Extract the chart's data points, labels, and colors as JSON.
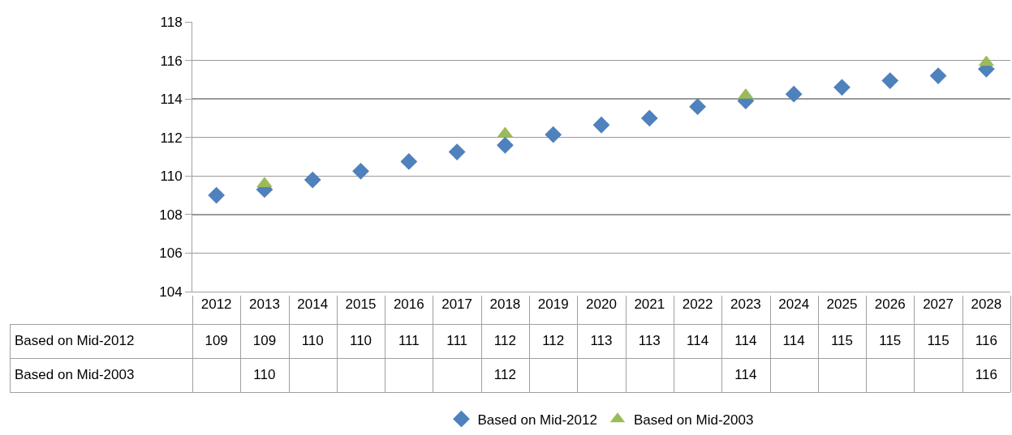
{
  "chart_data": {
    "type": "scatter",
    "categories": [
      "2012",
      "2013",
      "2014",
      "2015",
      "2016",
      "2017",
      "2018",
      "2019",
      "2020",
      "2021",
      "2022",
      "2023",
      "2024",
      "2025",
      "2026",
      "2027",
      "2028"
    ],
    "series": [
      {
        "name": "Based on Mid-2012",
        "color": "#4f81bd",
        "marker": "diamond",
        "values": [
          109.0,
          109.3,
          109.8,
          110.25,
          110.75,
          111.25,
          111.6,
          112.15,
          112.65,
          113.0,
          113.6,
          113.9,
          114.25,
          114.6,
          114.95,
          115.2,
          115.55
        ],
        "value_labels": [
          "109",
          "109",
          "110",
          "110",
          "111",
          "111",
          "112",
          "112",
          "113",
          "113",
          "114",
          "114",
          "114",
          "115",
          "115",
          "115",
          "116"
        ]
      },
      {
        "name": "Based on Mid-2003",
        "color": "#9bbb59",
        "marker": "triangle",
        "values": [
          null,
          109.6,
          null,
          null,
          null,
          null,
          112.2,
          null,
          null,
          null,
          null,
          114.2,
          null,
          null,
          null,
          null,
          115.9
        ],
        "value_labels": [
          null,
          "110",
          null,
          null,
          null,
          null,
          "112",
          null,
          null,
          null,
          null,
          "114",
          null,
          null,
          null,
          null,
          "116"
        ]
      }
    ],
    "ylim": [
      104,
      118
    ],
    "yticks": [
      104,
      106,
      108,
      110,
      112,
      114,
      116,
      118
    ],
    "grid": "y",
    "legend": "bottom"
  }
}
